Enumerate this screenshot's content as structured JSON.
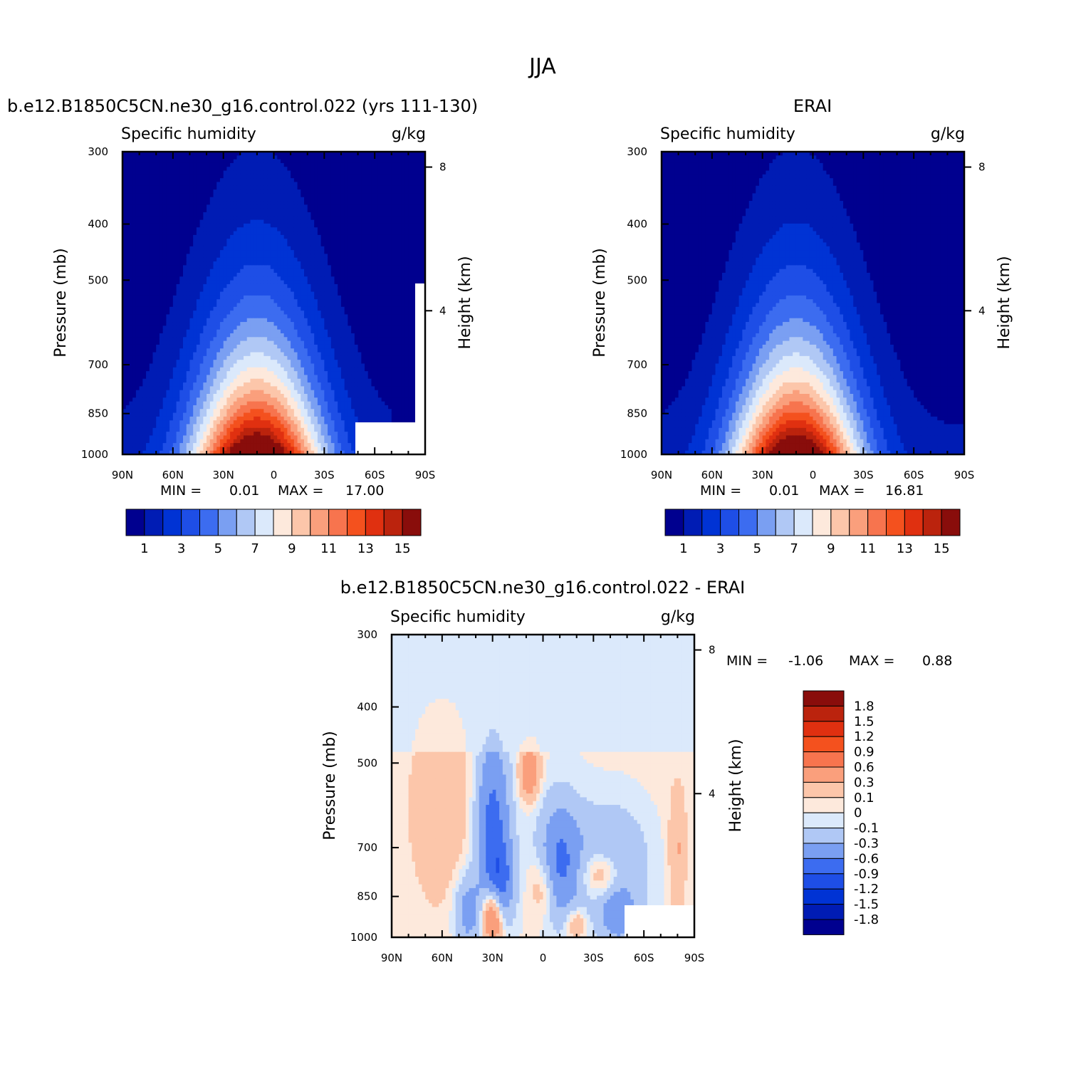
{
  "page_title": "JJA",
  "palettes": {
    "abs": [
      "#00008f",
      "#001cb4",
      "#0033d4",
      "#1e4ee6",
      "#3c6cf0",
      "#7a9ff2",
      "#b0c8f5",
      "#dbe9fb",
      "#fde9dc",
      "#fcc6aa",
      "#fa9f7c",
      "#f7744e",
      "#f4511e",
      "#e03010",
      "#bb230d",
      "#890d0b"
    ],
    "diff": [
      "#00008f",
      "#001cb4",
      "#0033d4",
      "#1e4ee6",
      "#3c6cf0",
      "#7a9ff2",
      "#b0c8f5",
      "#dbe9fb",
      "#fde9dc",
      "#fcc6aa",
      "#fa9f7c",
      "#f7744e",
      "#f4511e",
      "#e03010",
      "#bb230d",
      "#890d0b"
    ]
  },
  "chart_data": [
    {
      "type": "heatmap",
      "id": "model",
      "title": "b.e12.B1850C5CN.ne30_g16.control.022 (yrs 111-130)",
      "left_label": "Specific humidity",
      "right_label": "g/kg",
      "ylabel": "Pressure (mb)",
      "y2label": "Height (km)",
      "xticks": [
        "90N",
        "60N",
        "30N",
        "0",
        "30S",
        "60S",
        "90S"
      ],
      "yticks": [
        300,
        400,
        500,
        700,
        850,
        1000
      ],
      "y2ticks": [
        8,
        4
      ],
      "xlim": [
        90,
        -90
      ],
      "ylim": [
        1000,
        300
      ],
      "field": {
        "peak_lat": 10,
        "peak_value": 17.0,
        "top_pressure": 300
      },
      "min_label": "MIN =",
      "min_value": "0.01",
      "max_label": "MAX =",
      "max_value": "17.00",
      "colorbar_labels": [
        "1",
        "3",
        "5",
        "7",
        "9",
        "11",
        "13",
        "15"
      ]
    },
    {
      "type": "heatmap",
      "id": "obs",
      "title": "ERAI",
      "left_label": "Specific humidity",
      "right_label": "g/kg",
      "ylabel": "Pressure (mb)",
      "y2label": "Height (km)",
      "xticks": [
        "90N",
        "60N",
        "30N",
        "0",
        "30S",
        "60S",
        "90S"
      ],
      "yticks": [
        300,
        400,
        500,
        700,
        850,
        1000
      ],
      "y2ticks": [
        8,
        4
      ],
      "xlim": [
        90,
        -90
      ],
      "ylim": [
        1000,
        300
      ],
      "field": {
        "peak_lat": 10,
        "peak_value": 16.81,
        "top_pressure": 300
      },
      "min_label": "MIN =",
      "min_value": "0.01",
      "max_label": "MAX =",
      "max_value": "16.81",
      "colorbar_labels": [
        "1",
        "3",
        "5",
        "7",
        "9",
        "11",
        "13",
        "15"
      ]
    },
    {
      "type": "heatmap",
      "id": "diff",
      "title": "b.e12.B1850C5CN.ne30_g16.control.022 - ERAI",
      "left_label": "Specific humidity",
      "right_label": "g/kg",
      "ylabel": "Pressure (mb)",
      "y2label": "Height (km)",
      "xticks": [
        "90N",
        "60N",
        "30N",
        "0",
        "30S",
        "60S",
        "90S"
      ],
      "yticks": [
        300,
        400,
        500,
        700,
        850,
        1000
      ],
      "y2ticks": [
        8,
        4
      ],
      "xlim": [
        90,
        -90
      ],
      "ylim": [
        1000,
        300
      ],
      "min_label": "MIN =",
      "min_value": "-1.06",
      "max_label": "MAX =",
      "max_value": "0.88",
      "colorbar_labels": [
        "1.8",
        "1.5",
        "1.2",
        "0.9",
        "0.6",
        "0.3",
        "0.1",
        "0",
        "-0.1",
        "-0.3",
        "-0.6",
        "-0.9",
        "-1.2",
        "-1.5",
        "-1.8"
      ]
    }
  ]
}
